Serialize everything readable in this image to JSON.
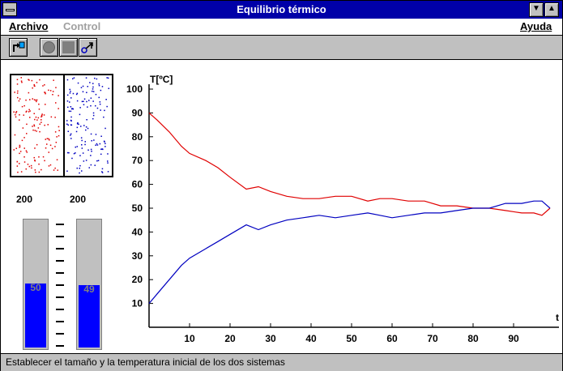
{
  "window": {
    "title": "Equilibrio térmico"
  },
  "menu": {
    "archivo": "Archivo",
    "control": "Control",
    "ayuda": "Ayuda"
  },
  "toolbar": {
    "buttons": [
      {
        "name": "new-simulation-icon"
      },
      {
        "name": "stop-icon"
      },
      {
        "name": "pause-icon"
      },
      {
        "name": "step-icon"
      }
    ]
  },
  "systems": {
    "left": {
      "particles": "200",
      "temperature": "50",
      "level": 0.5,
      "color": "#e00000"
    },
    "right": {
      "particles": "200",
      "temperature": "49",
      "level": 0.49,
      "color": "#0000c0"
    }
  },
  "status": {
    "text": "Establecer el tamaño y la temperatura inicial de los dos sistemas"
  },
  "chart_data": {
    "type": "line",
    "ylabel": "T[ºC]",
    "xlabel": "t",
    "xlim": [
      0,
      100
    ],
    "ylim": [
      0,
      100
    ],
    "xticks": [
      10,
      20,
      30,
      40,
      50,
      60,
      70,
      80,
      90
    ],
    "yticks": [
      10,
      20,
      30,
      40,
      50,
      60,
      70,
      80,
      90,
      100
    ],
    "series": [
      {
        "color": "#e00000",
        "x": [
          0,
          2,
          5,
          8,
          10,
          14,
          17,
          20,
          24,
          27,
          30,
          34,
          38,
          42,
          46,
          50,
          54,
          57,
          60,
          64,
          68,
          72,
          76,
          80,
          84,
          88,
          92,
          95,
          97,
          99
        ],
        "y": [
          90,
          87,
          82,
          76,
          73,
          70,
          67,
          63,
          58,
          59,
          57,
          55,
          54,
          54,
          55,
          55,
          53,
          54,
          54,
          53,
          53,
          51,
          51,
          50,
          50,
          49,
          48,
          48,
          47,
          50
        ]
      },
      {
        "color": "#0000c0",
        "x": [
          0,
          2,
          5,
          8,
          10,
          14,
          17,
          20,
          24,
          27,
          30,
          34,
          38,
          42,
          46,
          50,
          54,
          57,
          60,
          64,
          68,
          72,
          76,
          80,
          84,
          88,
          92,
          95,
          97,
          99
        ],
        "y": [
          10,
          14,
          20,
          26,
          29,
          33,
          36,
          39,
          43,
          41,
          43,
          45,
          46,
          47,
          46,
          47,
          48,
          47,
          46,
          47,
          48,
          48,
          49,
          50,
          50,
          52,
          52,
          53,
          53,
          50
        ]
      }
    ]
  }
}
